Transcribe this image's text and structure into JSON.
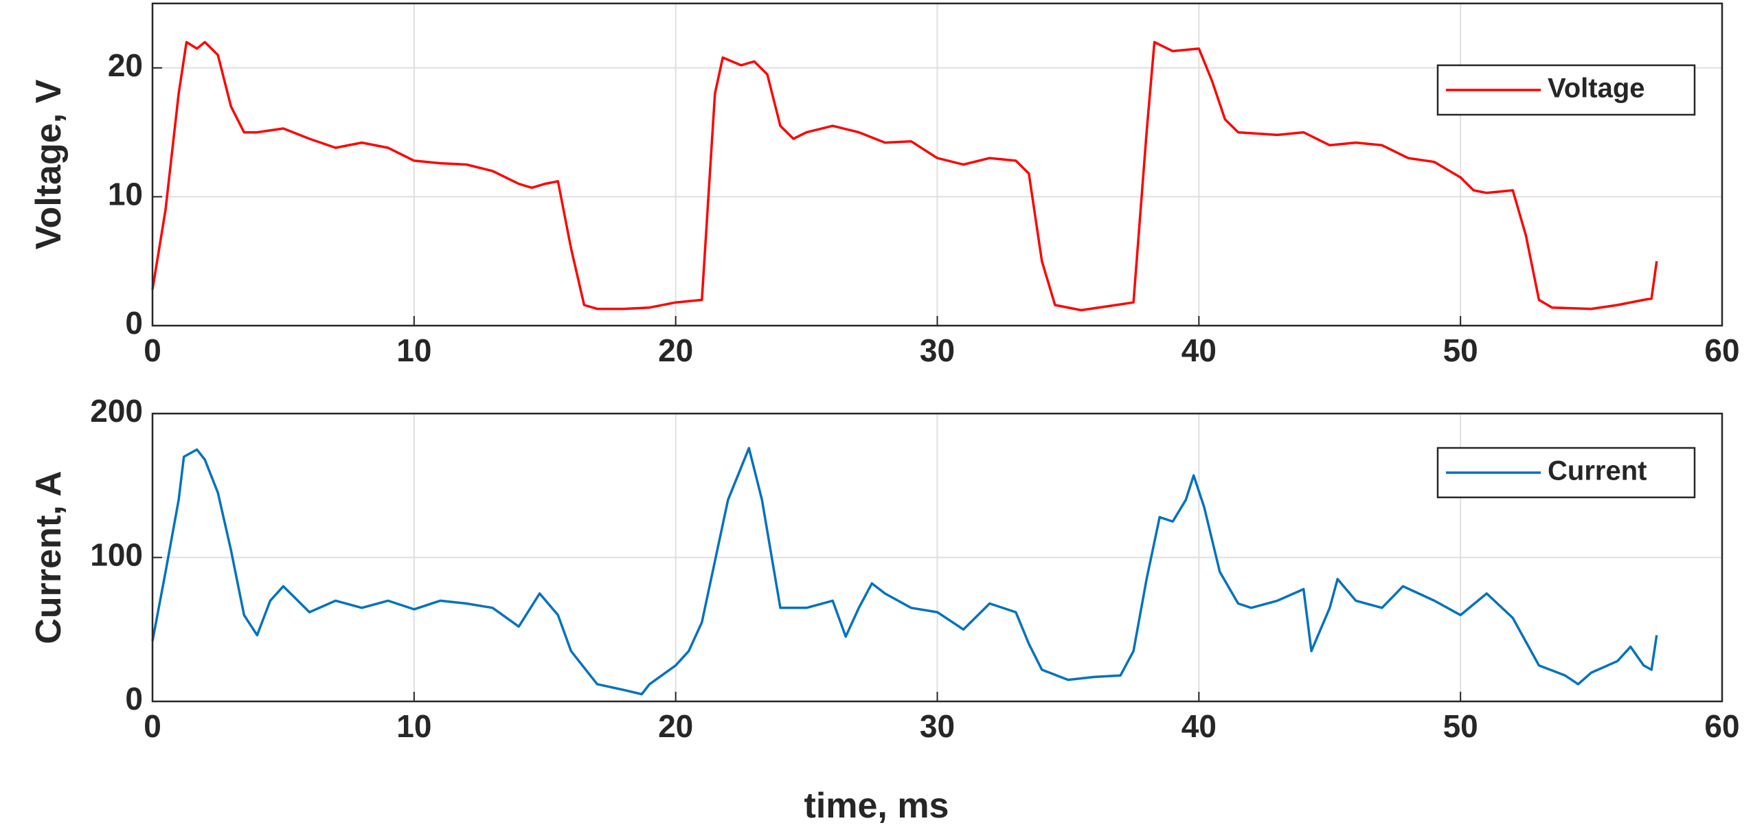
{
  "chart_data": [
    {
      "type": "line",
      "ylabel": "Voltage, V",
      "xlim": [
        0,
        60
      ],
      "xticks": [
        0,
        10,
        20,
        30,
        40,
        50,
        60
      ],
      "ylim": [
        0,
        25
      ],
      "yticks": [
        0,
        10,
        20
      ],
      "grid": true,
      "legend": "northeast",
      "series": [
        {
          "name": "Voltage",
          "color": "#ff0000",
          "x": [
            0,
            0.5,
            1,
            1.3,
            1.7,
            2,
            2.5,
            3,
            3.5,
            4,
            5,
            6,
            7,
            8,
            9,
            10,
            11,
            12,
            13,
            14,
            14.5,
            15,
            15.5,
            16,
            16.5,
            17,
            18,
            19,
            20,
            21,
            21.5,
            21.8,
            22.5,
            23,
            23.5,
            24,
            24.5,
            25,
            26,
            27,
            28,
            29,
            30,
            31,
            32,
            33,
            33.5,
            34,
            34.5,
            35.5,
            36.5,
            37.5,
            38,
            38.3,
            39,
            40,
            40.5,
            41,
            41.5,
            43,
            44,
            45,
            46,
            47,
            48,
            49,
            50,
            50.5,
            51,
            52,
            52.5,
            53,
            53.5,
            55,
            56,
            57,
            57.3,
            57.5
          ],
          "values": [
            2.8,
            9,
            18,
            22,
            21.5,
            22,
            21,
            17,
            15,
            15,
            15.3,
            14.5,
            13.8,
            14.2,
            13.8,
            12.8,
            12.6,
            12.5,
            12,
            11,
            10.7,
            11,
            11.2,
            6,
            1.6,
            1.3,
            1.3,
            1.4,
            1.8,
            2,
            18,
            20.8,
            20.2,
            20.5,
            19.5,
            15.5,
            14.5,
            15,
            15.5,
            15,
            14.2,
            14.3,
            13,
            12.5,
            13,
            12.8,
            11.8,
            5,
            1.6,
            1.2,
            1.5,
            1.8,
            15,
            22,
            21.3,
            21.5,
            19,
            16,
            15,
            14.8,
            15,
            14,
            14.2,
            14,
            13,
            12.7,
            11.5,
            10.5,
            10.3,
            10.5,
            7,
            2,
            1.4,
            1.3,
            1.6,
            2,
            2.1,
            5
          ]
        }
      ]
    },
    {
      "type": "line",
      "xlabel": "time, ms",
      "ylabel": "Current, A",
      "xlim": [
        0,
        60
      ],
      "xticks": [
        0,
        10,
        20,
        30,
        40,
        50,
        60
      ],
      "ylim": [
        0,
        200
      ],
      "yticks": [
        0,
        100,
        200
      ],
      "grid": true,
      "legend": "northeast",
      "series": [
        {
          "name": "Current",
          "color": "#0072bd",
          "x": [
            0,
            0.5,
            1,
            1.2,
            1.7,
            2,
            2.5,
            3,
            3.5,
            4,
            4.5,
            5,
            6,
            7,
            8,
            9,
            10,
            11,
            12,
            13,
            14,
            14.8,
            15.5,
            16,
            17,
            18,
            18.7,
            19,
            20,
            20.5,
            21,
            22,
            22.8,
            23.3,
            24,
            25,
            26,
            26.5,
            27,
            27.5,
            28,
            29,
            30,
            31,
            32,
            33,
            33.5,
            34,
            35,
            36,
            37,
            37.5,
            38,
            38.5,
            39,
            39.5,
            39.8,
            40.2,
            40.8,
            41.5,
            42,
            43,
            44,
            44.3,
            45,
            45.3,
            46,
            47,
            47.8,
            49,
            50,
            51,
            52,
            53,
            54,
            54.5,
            55,
            56,
            56.5,
            57,
            57.3,
            57.5
          ],
          "values": [
            42,
            90,
            140,
            170,
            175,
            168,
            145,
            105,
            60,
            46,
            70,
            80,
            62,
            70,
            65,
            70,
            64,
            70,
            68,
            65,
            52,
            75,
            60,
            35,
            12,
            8,
            5,
            12,
            25,
            35,
            55,
            140,
            176,
            140,
            65,
            65,
            70,
            45,
            65,
            82,
            75,
            65,
            62,
            50,
            68,
            62,
            40,
            22,
            15,
            17,
            18,
            35,
            85,
            128,
            125,
            140,
            157,
            135,
            90,
            68,
            65,
            70,
            78,
            35,
            65,
            85,
            70,
            65,
            80,
            70,
            60,
            75,
            58,
            25,
            18,
            12,
            20,
            28,
            38,
            25,
            22,
            46
          ]
        }
      ]
    }
  ]
}
